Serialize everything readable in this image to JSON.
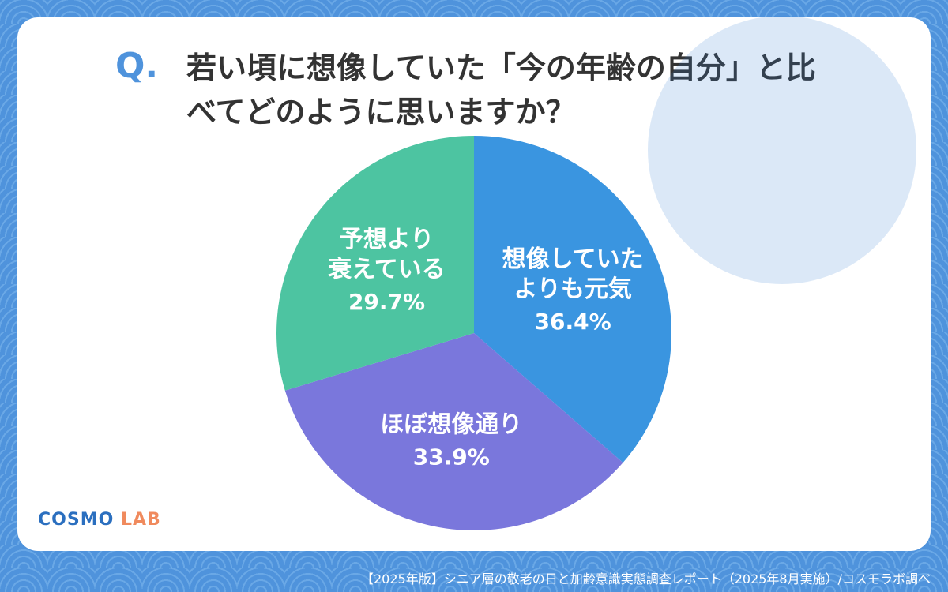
{
  "chart_data": {
    "type": "pie",
    "title_prefix": "Q.",
    "title": "若い頃に想像していた「今の年齢の自分」と比べてどのように思いますか？",
    "categories": [
      "想像していた\nよりも元気",
      "ほぼ想像通り",
      "予想より\n衰えている"
    ],
    "values": [
      36.4,
      33.9,
      29.7
    ],
    "value_labels": [
      "36.4%",
      "33.9%",
      "29.7%"
    ],
    "colors": [
      "#3a95e0",
      "#7a77dc",
      "#4dc4a1"
    ]
  },
  "logo": {
    "left": "COSMO",
    "right": "LAB"
  },
  "source": "【2025年版】シニア層の敬老の日と加齢意識実態調査レポート（2025年8月実施）/コスモラボ調べ"
}
